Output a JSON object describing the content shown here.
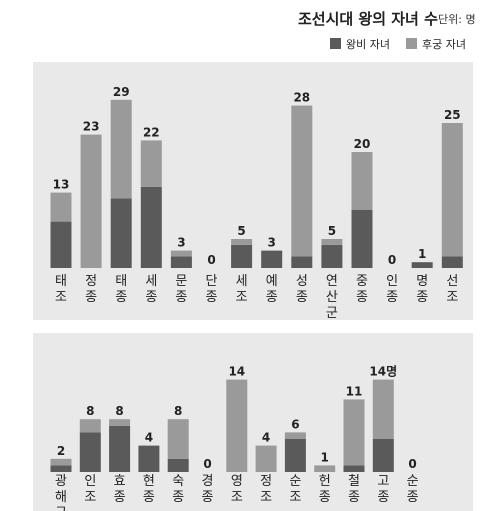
{
  "chart_data": {
    "type": "bar",
    "stacked": true,
    "title": "조선시대 왕의 자녀 수",
    "unit_label": "단위: 명",
    "legend_position": "top-right",
    "colors": {
      "wangbi": "#5a5a5a",
      "hugung": "#9a9a9a",
      "panel": "#e9e9e9"
    },
    "series": [
      {
        "name": "왕비 자녀",
        "key": "wangbi"
      },
      {
        "name": "후궁 자녀",
        "key": "hugung"
      }
    ],
    "panels": [
      {
        "categories": [
          "태조",
          "정종",
          "태종",
          "세종",
          "문종",
          "단종",
          "세조",
          "예종",
          "성종",
          "연산군",
          "중종",
          "인종",
          "명종",
          "선조"
        ],
        "total_labels": [
          "13",
          "23",
          "29",
          "22",
          "3",
          "0",
          "5",
          "3",
          "28",
          "5",
          "20",
          "0",
          "1",
          "25"
        ],
        "wangbi": [
          8,
          0,
          12,
          14,
          2,
          0,
          4,
          3,
          2,
          4,
          10,
          0,
          1,
          2
        ],
        "hugung": [
          5,
          23,
          17,
          8,
          1,
          0,
          1,
          0,
          26,
          1,
          10,
          0,
          0,
          23
        ]
      },
      {
        "categories": [
          "광해군",
          "인조",
          "효종",
          "현종",
          "숙종",
          "경종",
          "영조",
          "정조",
          "순조",
          "헌종",
          "철종",
          "고종",
          "순종"
        ],
        "total_labels": [
          "2",
          "8",
          "8",
          "4",
          "8",
          "0",
          "14",
          "4",
          "6",
          "1",
          "11",
          "14명",
          "0"
        ],
        "wangbi": [
          1,
          6,
          7,
          4,
          2,
          0,
          0,
          0,
          5,
          0,
          1,
          5,
          0
        ],
        "hugung": [
          1,
          2,
          1,
          0,
          6,
          0,
          14,
          4,
          1,
          1,
          10,
          9,
          0
        ]
      }
    ]
  }
}
